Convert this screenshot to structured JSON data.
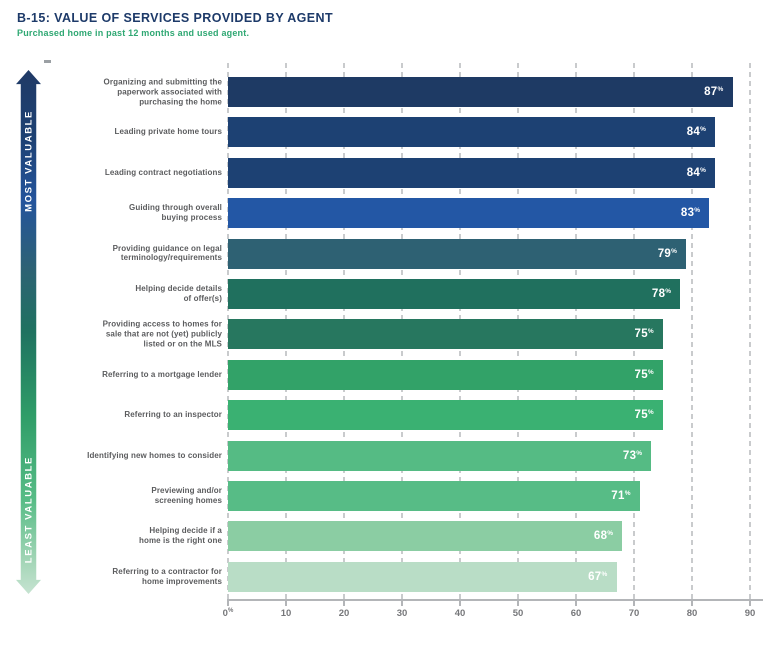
{
  "header": {
    "title": "B-15: VALUE OF SERVICES PROVIDED BY AGENT",
    "subtitle": "Purchased home in past 12 months and used agent."
  },
  "arrow": {
    "top_label": "MOST VALUABLE",
    "bottom_label": "LEAST VALUABLE"
  },
  "chart_data": {
    "type": "bar",
    "orientation": "horizontal",
    "title": "B-15: VALUE OF SERVICES PROVIDED BY AGENT",
    "subtitle": "Purchased home in past 12 months and used agent.",
    "categories": [
      "Organizing and submitting the\npaperwork associated with\npurchasing the home",
      "Leading private home tours",
      "Leading contract negotiations",
      "Guiding through overall\nbuying process",
      "Providing guidance on legal\nterminology/requirements",
      "Helping decide details\nof offer(s)",
      "Providing access to homes for\nsale that are not (yet) publicly\nlisted or on the MLS",
      "Referring to a mortgage lender",
      "Referring to an inspector",
      "Identifying new homes to consider",
      "Previewing and/or\nscreening homes",
      "Helping decide if a\nhome is the right one",
      "Referring to a contractor for\nhome improvements"
    ],
    "values": [
      87,
      84,
      84,
      83,
      79,
      78,
      75,
      75,
      75,
      73,
      71,
      68,
      67
    ],
    "value_suffix": "%",
    "bar_colors": [
      "#1e3a64",
      "#1d4173",
      "#1d4173",
      "#2357a5",
      "#2e6173",
      "#20705e",
      "#27775f",
      "#32a268",
      "#3ab172",
      "#55bb84",
      "#57bc86",
      "#8bcda3",
      "#b9ddc6"
    ],
    "x_ticks": [
      0,
      10,
      20,
      30,
      40,
      50,
      60,
      70,
      80,
      90
    ],
    "x_tick_suffix": "%",
    "xlim": [
      0,
      90
    ],
    "grid": "vertical-dashed",
    "legend": "none",
    "colors": {
      "title_text": "#1d3a69",
      "subtitle_text": "#2fa873",
      "category_text": "#5b5c5e",
      "axis_text": "#76777a",
      "value_text": "#ffffff",
      "gridline": "#c9cbcd",
      "axis_line": "#b3b5b8"
    }
  }
}
